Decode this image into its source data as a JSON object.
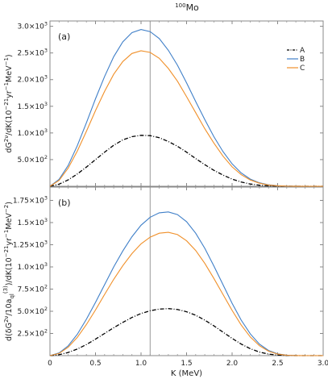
{
  "figure": {
    "title_super": "100",
    "title_main": "Mo"
  },
  "legend": [
    {
      "label": "A",
      "color": "#000000",
      "dash": "5,2,1,2"
    },
    {
      "label": "B",
      "color": "#3f7fc8",
      "dash": ""
    },
    {
      "label": "C",
      "color": "#f0902a",
      "dash": ""
    }
  ],
  "chart_data": [
    {
      "type": "line",
      "panel_label": "(a)",
      "ylabel": "dG^{2ν}/dK(10^{-21}yr^{-1}MeV^{-1})",
      "ylabel_parts": {
        "base": "dG",
        "sup1": "2ν",
        "mid": "/dK(10",
        "sup2": "−21",
        "mid2": "yr",
        "sup3": "−1",
        "mid3": "MeV",
        "sup4": "−1",
        "end": ")"
      },
      "xlim": [
        0,
        3.0
      ],
      "ylim": [
        0,
        3100
      ],
      "yticks": [
        {
          "value": 500,
          "label": "5.0×10",
          "exp": "2"
        },
        {
          "value": 1000,
          "label": "1.0×10",
          "exp": "3"
        },
        {
          "value": 1500,
          "label": "1.5×10",
          "exp": "3"
        },
        {
          "value": 2000,
          "label": "2.0×10",
          "exp": "3"
        },
        {
          "value": 2500,
          "label": "2.5×10",
          "exp": "3"
        },
        {
          "value": 3000,
          "label": "3.0×10",
          "exp": "3"
        }
      ],
      "vline_x": 1.1,
      "series": [
        {
          "name": "A",
          "x": [
            0,
            0.1,
            0.2,
            0.3,
            0.4,
            0.5,
            0.6,
            0.7,
            0.8,
            0.9,
            1.0,
            1.1,
            1.2,
            1.3,
            1.4,
            1.5,
            1.6,
            1.7,
            1.8,
            1.9,
            2.0,
            2.1,
            2.2,
            2.3,
            2.4,
            2.5,
            2.6,
            2.7,
            2.8,
            2.9,
            3.0
          ],
          "values": [
            0,
            40,
            120,
            230,
            360,
            500,
            640,
            770,
            870,
            930,
            955,
            950,
            910,
            840,
            750,
            640,
            520,
            405,
            300,
            210,
            135,
            80,
            42,
            20,
            8,
            3,
            1,
            0,
            0,
            0,
            0
          ]
        },
        {
          "name": "B",
          "x": [
            0,
            0.1,
            0.2,
            0.3,
            0.4,
            0.5,
            0.6,
            0.7,
            0.8,
            0.9,
            1.0,
            1.1,
            1.2,
            1.3,
            1.4,
            1.5,
            1.6,
            1.7,
            1.8,
            1.9,
            2.0,
            2.1,
            2.2,
            2.3,
            2.4,
            2.5,
            2.6,
            2.7,
            2.8,
            2.9,
            3.0
          ],
          "values": [
            0,
            130,
            390,
            760,
            1190,
            1640,
            2060,
            2430,
            2710,
            2880,
            2940,
            2900,
            2770,
            2550,
            2270,
            1940,
            1590,
            1250,
            930,
            650,
            420,
            250,
            135,
            65,
            27,
            10,
            3,
            1,
            0,
            0,
            0
          ]
        },
        {
          "name": "C",
          "x": [
            0,
            0.1,
            0.2,
            0.3,
            0.4,
            0.5,
            0.6,
            0.7,
            0.8,
            0.9,
            1.0,
            1.1,
            1.2,
            1.3,
            1.4,
            1.5,
            1.6,
            1.7,
            1.8,
            1.9,
            2.0,
            2.1,
            2.2,
            2.3,
            2.4,
            2.5,
            2.6,
            2.7,
            2.8,
            2.9,
            3.0
          ],
          "values": [
            0,
            110,
            340,
            660,
            1030,
            1420,
            1780,
            2100,
            2340,
            2490,
            2540,
            2510,
            2400,
            2210,
            1970,
            1680,
            1380,
            1080,
            810,
            565,
            365,
            218,
            118,
            57,
            24,
            9,
            3,
            1,
            0,
            0,
            0
          ]
        }
      ]
    },
    {
      "type": "line",
      "panel_label": "(b)",
      "ylabel_parts": {
        "base": "d(δG",
        "sup1": "2ν",
        "mid": "/10a",
        "sub": "ql",
        "sup_a": "(3)",
        "mid2": ")/dK(10",
        "sup2": "−21",
        "mid3": "yr",
        "sup3": "−1",
        "mid4": "MeV",
        "sup4": "−2",
        "end": ")"
      },
      "xlabel": "K (MeV)",
      "xlim": [
        0,
        3.0
      ],
      "ylim": [
        0,
        1900
      ],
      "xticks": [
        {
          "value": 0,
          "label": "0"
        },
        {
          "value": 0.5,
          "label": "0.5"
        },
        {
          "value": 1.0,
          "label": "1.0"
        },
        {
          "value": 1.5,
          "label": "1.5"
        },
        {
          "value": 2.0,
          "label": "2.0"
        },
        {
          "value": 2.5,
          "label": "2.5"
        },
        {
          "value": 3.0,
          "label": "3.0"
        }
      ],
      "yticks": [
        {
          "value": 250,
          "label": "2.5×10",
          "exp": "2"
        },
        {
          "value": 500,
          "label": "5.0×10",
          "exp": "2"
        },
        {
          "value": 750,
          "label": "7.5×10",
          "exp": "2"
        },
        {
          "value": 1000,
          "label": "1.0×10",
          "exp": "3"
        },
        {
          "value": 1250,
          "label": "1.25×10",
          "exp": "3"
        },
        {
          "value": 1500,
          "label": "1.5×10",
          "exp": "3"
        },
        {
          "value": 1750,
          "label": "1.75×10",
          "exp": "3"
        }
      ],
      "vline_x": 1.1,
      "series": [
        {
          "name": "A",
          "x": [
            0,
            0.1,
            0.2,
            0.3,
            0.4,
            0.5,
            0.6,
            0.7,
            0.8,
            0.9,
            1.0,
            1.1,
            1.2,
            1.3,
            1.4,
            1.5,
            1.6,
            1.7,
            1.8,
            1.9,
            2.0,
            2.1,
            2.2,
            2.3,
            2.4,
            2.5,
            2.6,
            2.7,
            2.8,
            2.9,
            3.0
          ],
          "values": [
            0,
            10,
            35,
            75,
            125,
            185,
            250,
            315,
            375,
            430,
            475,
            505,
            525,
            530,
            520,
            495,
            455,
            400,
            335,
            265,
            195,
            130,
            78,
            40,
            17,
            6,
            2,
            0,
            0,
            0,
            0
          ]
        },
        {
          "name": "B",
          "x": [
            0,
            0.1,
            0.2,
            0.3,
            0.4,
            0.5,
            0.6,
            0.7,
            0.8,
            0.9,
            1.0,
            1.1,
            1.2,
            1.3,
            1.4,
            1.5,
            1.6,
            1.7,
            1.8,
            1.9,
            2.0,
            2.1,
            2.2,
            2.3,
            2.4,
            2.5,
            2.6,
            2.7,
            2.8,
            2.9,
            3.0
          ],
          "values": [
            0,
            30,
            110,
            240,
            410,
            600,
            800,
            1000,
            1180,
            1340,
            1470,
            1560,
            1610,
            1620,
            1590,
            1510,
            1380,
            1210,
            1010,
            800,
            590,
            400,
            245,
            130,
            58,
            20,
            5,
            1,
            0,
            0,
            0
          ]
        },
        {
          "name": "C",
          "x": [
            0,
            0.1,
            0.2,
            0.3,
            0.4,
            0.5,
            0.6,
            0.7,
            0.8,
            0.9,
            1.0,
            1.1,
            1.2,
            1.3,
            1.4,
            1.5,
            1.6,
            1.7,
            1.8,
            1.9,
            2.0,
            2.1,
            2.2,
            2.3,
            2.4,
            2.5,
            2.6,
            2.7,
            2.8,
            2.9,
            3.0
          ],
          "values": [
            0,
            25,
            95,
            205,
            350,
            515,
            690,
            860,
            1015,
            1150,
            1260,
            1335,
            1380,
            1390,
            1365,
            1295,
            1185,
            1040,
            870,
            690,
            510,
            345,
            210,
            112,
            50,
            17,
            4,
            1,
            0,
            0,
            0
          ]
        }
      ]
    }
  ]
}
